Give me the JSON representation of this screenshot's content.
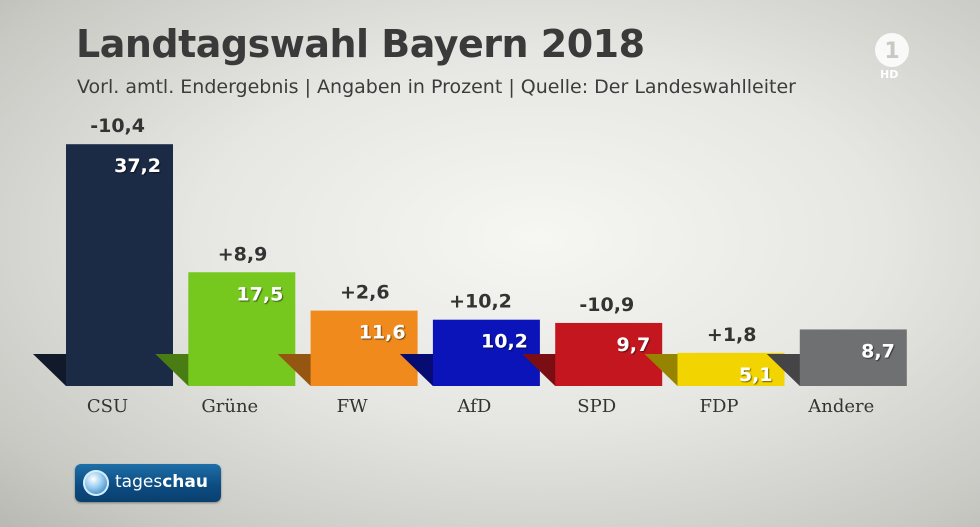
{
  "header": {
    "title": "Landtagswahl Bayern 2018",
    "subtitle": "Vorl. amtl. Endergebnis | Angaben in Prozent | Quelle: Der Landeswahlleiter"
  },
  "broadcaster": {
    "channel_logo_number": "1",
    "channel_logo_label": "HD",
    "show_brand": "tageschau"
  },
  "chart_data": {
    "type": "bar",
    "title": "Landtagswahl Bayern 2018",
    "subtitle": "Vorl. amtl. Endergebnis | Angaben in Prozent | Quelle: Der Landeswahlleiter",
    "categories": [
      "CSU",
      "Grüne",
      "FW",
      "AfD",
      "SPD",
      "FDP",
      "Andere"
    ],
    "values": [
      37.2,
      17.5,
      11.6,
      10.2,
      9.7,
      5.1,
      8.7
    ],
    "value_labels": [
      "37,2",
      "17,5",
      "11,6",
      "10,2",
      "9,7",
      "5,1",
      "8,7"
    ],
    "change_labels": [
      "-10,4",
      "+8,9",
      "+2,6",
      "+10,2",
      "-10,9",
      "+1,8",
      ""
    ],
    "changes": [
      -10.4,
      8.9,
      2.6,
      10.2,
      -10.9,
      1.8,
      null
    ],
    "colors": [
      "#1b2a45",
      "#76c81f",
      "#f08a1c",
      "#0a14b8",
      "#c4161f",
      "#f2d400",
      "#6f7072"
    ],
    "unit": "%",
    "ylim": [
      0,
      40
    ],
    "grid": false,
    "legend": "none"
  }
}
